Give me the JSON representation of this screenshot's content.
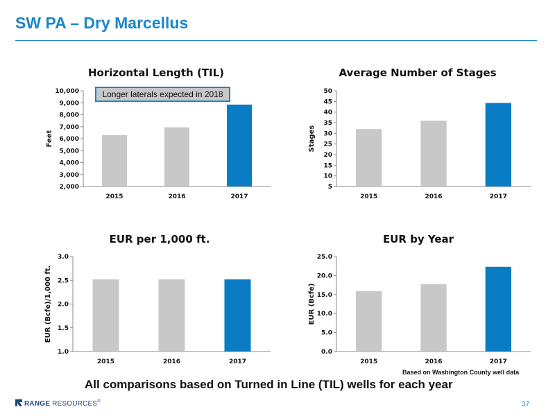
{
  "slide": {
    "title": "SW PA – Dry Marcellus",
    "footer": "All comparisons based on Turned in Line (TIL) wells for each year",
    "note": "Based on Washington County well data",
    "callout": "Longer laterals expected in 2018",
    "logo_bold": "RANGE",
    "logo_text": " RESOURCES",
    "logo_tm": "®",
    "page_number": "37"
  },
  "colors": {
    "accent": "#1a86c8",
    "bar_gray": "#c8c8c8",
    "bar_blue": "#0a7cc4"
  },
  "chart_data": [
    {
      "type": "bar",
      "title": "Horizontal Length (TIL)",
      "ylabel": "Feet",
      "categories": [
        "2015",
        "2016",
        "2017"
      ],
      "values": [
        6300,
        6950,
        8850
      ],
      "ylim": [
        2000,
        10000
      ],
      "ticks": [
        2000,
        3000,
        4000,
        5000,
        6000,
        7000,
        8000,
        9000,
        10000
      ],
      "tick_labels": [
        "2,000",
        "3,000",
        "4,000",
        "5,000",
        "6,000",
        "7,000",
        "8,000",
        "9,000",
        "10,000"
      ],
      "highlight_last": true
    },
    {
      "type": "bar",
      "title": "Average Number of Stages",
      "ylabel": "Stages",
      "categories": [
        "2015",
        "2016",
        "2017"
      ],
      "values": [
        32,
        36,
        44.3
      ],
      "ylim": [
        5,
        50
      ],
      "ticks": [
        5,
        10,
        15,
        20,
        25,
        30,
        35,
        40,
        45,
        50
      ],
      "tick_labels": [
        "5",
        "10",
        "15",
        "20",
        "25",
        "30",
        "35",
        "40",
        "45",
        "50"
      ],
      "highlight_last": true
    },
    {
      "type": "bar",
      "title": "EUR per 1,000 ft.",
      "ylabel": "EUR (Bcfe)/1,000 ft.",
      "categories": [
        "2015",
        "2016",
        "2017"
      ],
      "values": [
        2.52,
        2.52,
        2.52
      ],
      "ylim": [
        1.0,
        3.0
      ],
      "ticks": [
        1.0,
        1.5,
        2.0,
        2.5,
        3.0
      ],
      "tick_labels": [
        "1.0",
        "1.5",
        "2.0",
        "2.5",
        "3.0"
      ],
      "highlight_last": true
    },
    {
      "type": "bar",
      "title": "EUR by Year",
      "ylabel": "EUR (Bcfe)",
      "categories": [
        "2015",
        "2016",
        "2017"
      ],
      "values": [
        15.9,
        17.7,
        22.3
      ],
      "ylim": [
        0,
        25
      ],
      "ticks": [
        0,
        5,
        10,
        15,
        20,
        25
      ],
      "tick_labels": [
        "0.0",
        "5.0",
        "10.0",
        "15.0",
        "20.0",
        "25.0"
      ],
      "highlight_last": true
    }
  ]
}
